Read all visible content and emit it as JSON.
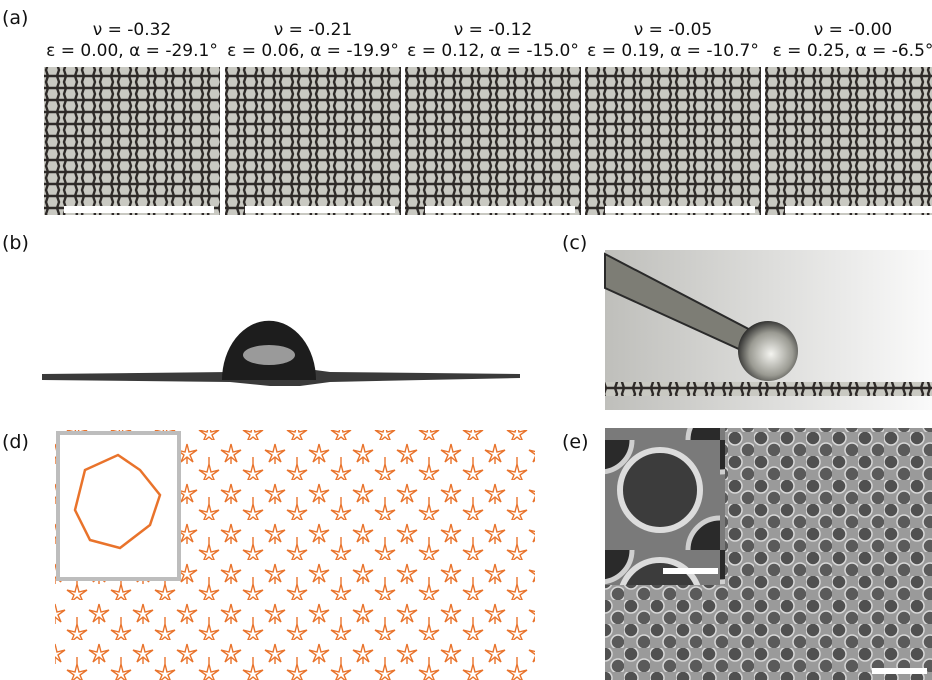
{
  "panel_labels": [
    "(a)",
    "(b)",
    "(c)",
    "(d)",
    "(e)"
  ],
  "panel_a": {
    "columns": [
      {
        "nu": "ν = -0.32",
        "params": "ε = 0.00, α = -29.1°"
      },
      {
        "nu": "ν = -0.21",
        "params": "ε = 0.06, α = -19.9°"
      },
      {
        "nu": "ν = -0.12",
        "params": "ε = 0.12, α = -15.0°"
      },
      {
        "nu": "ν = -0.05",
        "params": "ε = 0.19, α = -10.7°"
      },
      {
        "nu": "ν = -0.00",
        "params": "ε = 0.25, α = -6.5°"
      }
    ]
  }
}
